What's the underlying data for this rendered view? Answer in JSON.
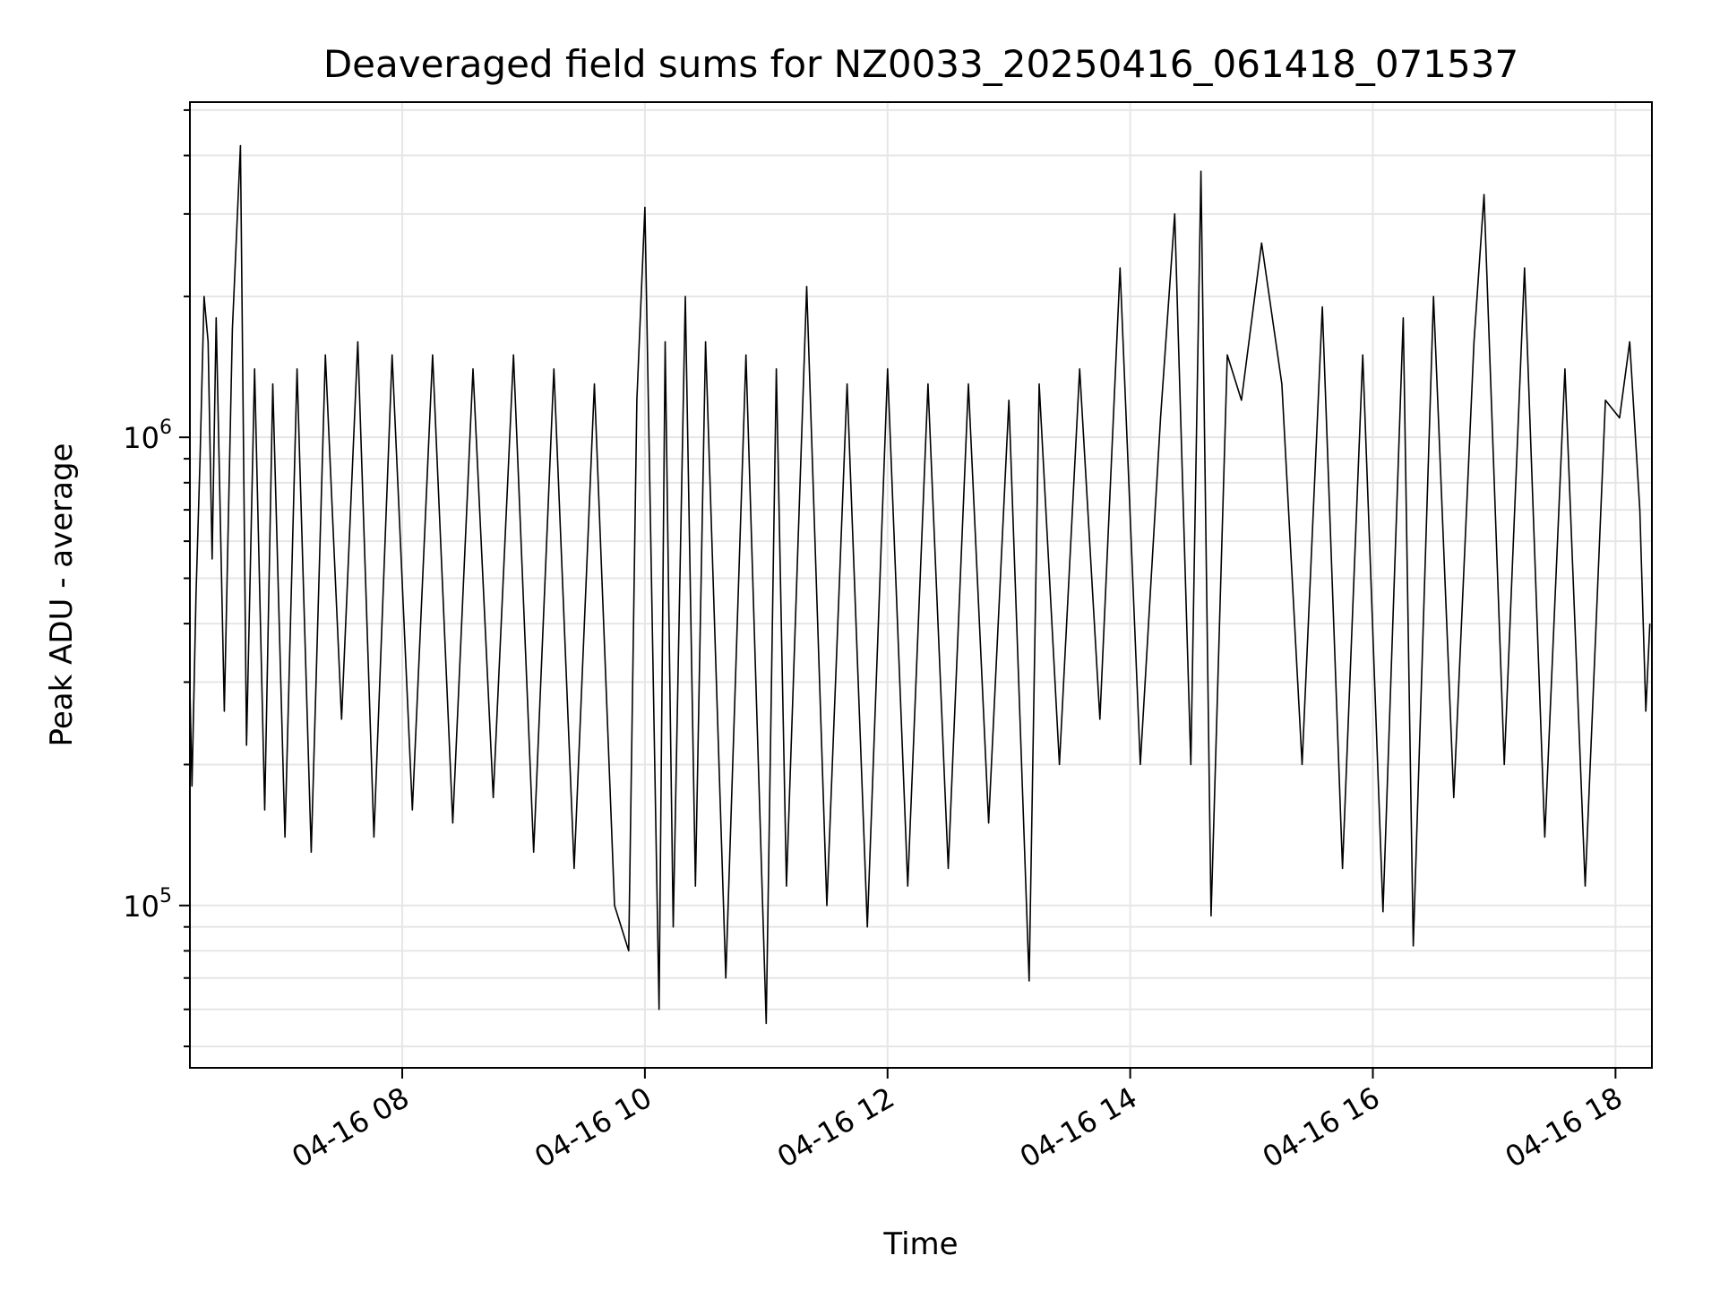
{
  "chart_data": {
    "type": "line",
    "title": "Deaveraged field sums for NZ0033_20250416_061418_071537",
    "xlabel": "Time",
    "ylabel": "Peak ADU - average",
    "yscale": "log",
    "xlim": [
      "04-16 06:15",
      "04-16 18:18"
    ],
    "ylim": [
      45000,
      5200000
    ],
    "x_ticks": [
      {
        "label": "04-16 08",
        "value": "04-16 08:00"
      },
      {
        "label": "04-16 10",
        "value": "04-16 10:00"
      },
      {
        "label": "04-16 12",
        "value": "04-16 12:00"
      },
      {
        "label": "04-16 14",
        "value": "04-16 14:00"
      },
      {
        "label": "04-16 16",
        "value": "04-16 16:00"
      },
      {
        "label": "04-16 18",
        "value": "04-16 18:00"
      }
    ],
    "y_ticks": [
      {
        "base": "10",
        "exp": "5",
        "value": 100000
      },
      {
        "base": "10",
        "exp": "6",
        "value": 1000000
      }
    ],
    "grid": true,
    "line_color": "#000000",
    "grid_color": "#e6e6e6",
    "series": [
      {
        "x": [
          "04-16 06:15",
          "04-16 06:16",
          "04-16 06:18",
          "04-16 06:20",
          "04-16 06:22",
          "04-16 06:24",
          "04-16 06:26",
          "04-16 06:28",
          "04-16 06:32",
          "04-16 06:36",
          "04-16 06:40",
          "04-16 06:43",
          "04-16 06:47",
          "04-16 06:52",
          "04-16 06:56",
          "04-16 07:02",
          "04-16 07:08",
          "04-16 07:15",
          "04-16 07:22",
          "04-16 07:30",
          "04-16 07:38",
          "04-16 07:46",
          "04-16 07:55",
          "04-16 08:05",
          "04-16 08:15",
          "04-16 08:25",
          "04-16 08:35",
          "04-16 08:45",
          "04-16 08:55",
          "04-16 09:05",
          "04-16 09:15",
          "04-16 09:25",
          "04-16 09:35",
          "04-16 09:45",
          "04-16 09:52",
          "04-16 09:56",
          "04-16 10:00",
          "04-16 10:07",
          "04-16 10:10",
          "04-16 10:14",
          "04-16 10:20",
          "04-16 10:25",
          "04-16 10:30",
          "04-16 10:40",
          "04-16 10:50",
          "04-16 11:00",
          "04-16 11:05",
          "04-16 11:10",
          "04-16 11:20",
          "04-16 11:30",
          "04-16 11:40",
          "04-16 11:50",
          "04-16 12:00",
          "04-16 12:10",
          "04-16 12:20",
          "04-16 12:30",
          "04-16 12:40",
          "04-16 12:50",
          "04-16 13:00",
          "04-16 13:10",
          "04-16 13:15",
          "04-16 13:25",
          "04-16 13:35",
          "04-16 13:45",
          "04-16 13:55",
          "04-16 14:05",
          "04-16 14:15",
          "04-16 14:22",
          "04-16 14:30",
          "04-16 14:35",
          "04-16 14:40",
          "04-16 14:48",
          "04-16 14:55",
          "04-16 15:05",
          "04-16 15:15",
          "04-16 15:25",
          "04-16 15:35",
          "04-16 15:45",
          "04-16 15:55",
          "04-16 16:05",
          "04-16 16:15",
          "04-16 16:20",
          "04-16 16:30",
          "04-16 16:40",
          "04-16 16:50",
          "04-16 16:55",
          "04-16 17:05",
          "04-16 17:15",
          "04-16 17:25",
          "04-16 17:35",
          "04-16 17:45",
          "04-16 17:55",
          "04-16 18:02",
          "04-16 18:07",
          "04-16 18:12",
          "04-16 18:15",
          "04-16 18:17"
        ],
        "y": [
          290000,
          180000,
          460000,
          900000,
          2000000,
          1600000,
          550000,
          1800000,
          260000,
          1700000,
          4200000,
          220000,
          1400000,
          160000,
          1300000,
          140000,
          1400000,
          130000,
          1500000,
          250000,
          1600000,
          140000,
          1500000,
          160000,
          1500000,
          150000,
          1400000,
          170000,
          1500000,
          130000,
          1400000,
          120000,
          1300000,
          100000,
          80000,
          1200000,
          3100000,
          60000,
          1600000,
          90000,
          2000000,
          110000,
          1600000,
          70000,
          1500000,
          56000,
          1400000,
          110000,
          2100000,
          100000,
          1300000,
          90000,
          1400000,
          110000,
          1300000,
          120000,
          1300000,
          150000,
          1200000,
          69000,
          1300000,
          200000,
          1400000,
          250000,
          2300000,
          200000,
          1100000,
          3000000,
          200000,
          3700000,
          95000,
          1500000,
          1200000,
          2600000,
          1300000,
          200000,
          1900000,
          120000,
          1500000,
          97000,
          1800000,
          82000,
          2000000,
          170000,
          1600000,
          3300000,
          200000,
          2300000,
          140000,
          1400000,
          110000,
          1200000,
          1100000,
          1600000,
          700000,
          260000,
          400000
        ]
      }
    ]
  }
}
